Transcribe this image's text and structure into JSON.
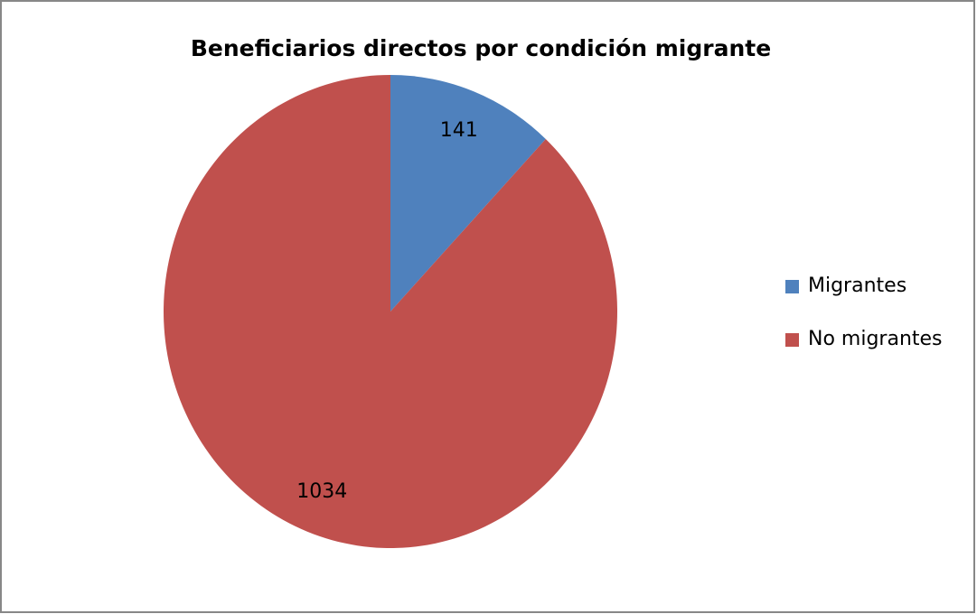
{
  "chart_data": {
    "type": "pie",
    "title": "Beneficiarios directos por condición migrante",
    "categories": [
      "Migrantes",
      "No migrantes"
    ],
    "values": [
      141,
      1034
    ],
    "colors": [
      "#4f81bd",
      "#c0504d"
    ],
    "legend": "right"
  }
}
